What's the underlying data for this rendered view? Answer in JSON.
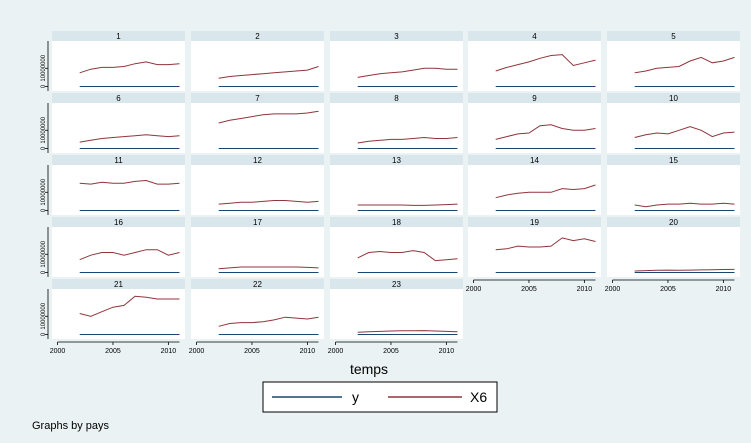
{
  "chart_data": {
    "type": "line",
    "facet_by_label": "Graphs by pays",
    "xlabel": "temps",
    "xticks": [
      2000,
      2005,
      2010
    ],
    "xlim": [
      1999.5,
      2011.5
    ],
    "ytick_labels": [
      "0",
      "10000000"
    ],
    "yticks": [
      0,
      10000000
    ],
    "ylim": [
      -2500000,
      25000000
    ],
    "legend": {
      "position": "bottom",
      "entries": [
        {
          "name": "y",
          "color": "#1a476f"
        },
        {
          "name": "X6",
          "color": "#90353b"
        }
      ]
    },
    "years": [
      2002,
      2003,
      2004,
      2005,
      2006,
      2007,
      2008,
      2009,
      2010,
      2011
    ],
    "panels": [
      {
        "label": "1",
        "y": [
          0,
          0,
          0,
          0,
          0,
          0,
          0,
          0,
          0,
          0
        ],
        "X6": [
          7.5,
          9.5,
          10.5,
          10.5,
          11,
          12.5,
          13.5,
          12,
          12,
          12.5
        ]
      },
      {
        "label": "2",
        "y": [
          0,
          0,
          0,
          0,
          0,
          0,
          0,
          0,
          0,
          0
        ],
        "X6": [
          4.5,
          5.5,
          6,
          6.5,
          7,
          7.5,
          8,
          8.5,
          9,
          11
        ]
      },
      {
        "label": "3",
        "y": [
          0,
          0,
          0,
          0,
          0,
          0,
          0,
          0,
          0,
          0
        ],
        "X6": [
          5,
          6,
          7,
          7.5,
          8,
          9,
          10,
          10,
          9.5,
          9.5
        ]
      },
      {
        "label": "4",
        "y": [
          0,
          0,
          0,
          0,
          0,
          0,
          0,
          0,
          0,
          0
        ],
        "X6": [
          8.5,
          10.5,
          12,
          13.5,
          15.5,
          17,
          17.5,
          11.5,
          13,
          14.5
        ]
      },
      {
        "label": "5",
        "y": [
          0,
          0,
          0,
          0,
          0,
          0,
          0,
          0,
          0,
          0
        ],
        "X6": [
          7.5,
          8.5,
          10,
          10.5,
          11,
          14,
          16,
          13,
          14,
          16
        ]
      },
      {
        "label": "6",
        "y": [
          0,
          0,
          0,
          0,
          0,
          0,
          0,
          0,
          0,
          0
        ],
        "X6": [
          3.5,
          4.5,
          5.5,
          6,
          6.5,
          7,
          7.5,
          7,
          6.5,
          7
        ]
      },
      {
        "label": "7",
        "y": [
          0,
          0,
          0,
          0,
          0,
          0,
          0,
          0,
          0,
          0
        ],
        "X6": [
          14,
          15.5,
          16.5,
          17.5,
          18.5,
          19,
          19,
          19,
          19.5,
          20.5
        ]
      },
      {
        "label": "8",
        "y": [
          0,
          0,
          0,
          0,
          0,
          0,
          0,
          0,
          0,
          0
        ],
        "X6": [
          3,
          4,
          4.5,
          5,
          5,
          5.5,
          6,
          5.5,
          5.5,
          6
        ]
      },
      {
        "label": "9",
        "y": [
          0,
          0,
          0,
          0,
          0,
          0,
          0,
          0,
          0,
          0
        ],
        "X6": [
          5,
          6.5,
          8,
          8.5,
          12.5,
          13,
          11,
          10,
          10,
          11
        ]
      },
      {
        "label": "10",
        "y": [
          0,
          0,
          0,
          0,
          0,
          0,
          0,
          0,
          0,
          0
        ],
        "X6": [
          6,
          7.5,
          8.5,
          8,
          10,
          12,
          10,
          6.5,
          8.5,
          9
        ]
      },
      {
        "label": "11",
        "y": [
          0,
          0,
          0,
          0,
          0,
          0,
          0,
          0,
          0,
          0
        ],
        "X6": [
          15,
          14.5,
          15.5,
          15,
          15,
          16,
          16.5,
          14.5,
          14.5,
          15
        ]
      },
      {
        "label": "12",
        "y": [
          0,
          0,
          0,
          0,
          0,
          0,
          0,
          0,
          0,
          0
        ],
        "X6": [
          3.5,
          4,
          4.5,
          4.5,
          5,
          5.5,
          5.5,
          5,
          4.5,
          5
        ]
      },
      {
        "label": "13",
        "y": [
          0,
          0,
          0,
          0,
          0,
          0,
          0,
          0,
          0,
          0
        ],
        "X6": [
          3,
          3,
          3,
          3,
          3,
          2.8,
          2.8,
          3,
          3.2,
          3.5
        ]
      },
      {
        "label": "14",
        "y": [
          0,
          0,
          0,
          0,
          0,
          0,
          0,
          0,
          0,
          0
        ],
        "X6": [
          7,
          8.5,
          9.5,
          10,
          10,
          10,
          12,
          11.5,
          12,
          14
        ]
      },
      {
        "label": "15",
        "y": [
          0,
          0,
          0,
          0,
          0,
          0,
          0,
          0,
          0,
          0
        ],
        "X6": [
          3,
          2,
          3,
          3.5,
          3.5,
          4,
          3.5,
          3.5,
          4,
          3.5
        ]
      },
      {
        "label": "16",
        "y": [
          0,
          0,
          0,
          0,
          0,
          0,
          0,
          0,
          0,
          0
        ],
        "X6": [
          7,
          9.5,
          11,
          11,
          9.5,
          11,
          12.5,
          12.5,
          9.5,
          11
        ]
      },
      {
        "label": "17",
        "y": [
          0,
          0,
          0,
          0,
          0,
          0,
          0,
          0,
          0,
          0
        ],
        "X6": [
          2,
          2.5,
          3,
          3,
          3,
          3,
          3,
          3,
          2.8,
          2.5
        ]
      },
      {
        "label": "18",
        "y": [
          0,
          0,
          0,
          0,
          0,
          0,
          0,
          0,
          0,
          0
        ],
        "X6": [
          8,
          11,
          11.5,
          11,
          11,
          12,
          11,
          6.5,
          7,
          7.5
        ]
      },
      {
        "label": "19",
        "y": [
          0,
          0,
          0,
          0,
          0,
          0,
          0,
          0,
          0,
          0
        ],
        "X6": [
          12.5,
          13,
          14.5,
          14,
          14,
          14.5,
          19,
          17.5,
          18.5,
          17
        ]
      },
      {
        "label": "20",
        "y": [
          0,
          0,
          0,
          0,
          0,
          0,
          0,
          0,
          0,
          0
        ],
        "X6": [
          0.8,
          1,
          1.2,
          1.3,
          1.2,
          1.3,
          1.4,
          1.5,
          1.6,
          1.7
        ]
      },
      {
        "label": "21",
        "y": [
          0,
          0,
          0,
          0,
          0,
          0,
          0,
          0,
          0,
          0
        ],
        "X6": [
          11.5,
          10,
          12.5,
          15,
          16,
          21,
          20.5,
          19.5,
          19.5,
          19.5
        ]
      },
      {
        "label": "22",
        "y": [
          0,
          0,
          0,
          0,
          0,
          0,
          0,
          0,
          0,
          0
        ],
        "X6": [
          4.5,
          6,
          6.5,
          6.5,
          7,
          8,
          9.5,
          9,
          8.5,
          9.5
        ]
      },
      {
        "label": "23",
        "y": [
          0,
          0,
          0,
          0,
          0,
          0,
          0,
          0,
          0,
          0
        ],
        "X6": [
          1.2,
          1.5,
          1.7,
          1.9,
          2,
          2,
          2.1,
          1.9,
          1.7,
          1.5
        ]
      }
    ]
  }
}
